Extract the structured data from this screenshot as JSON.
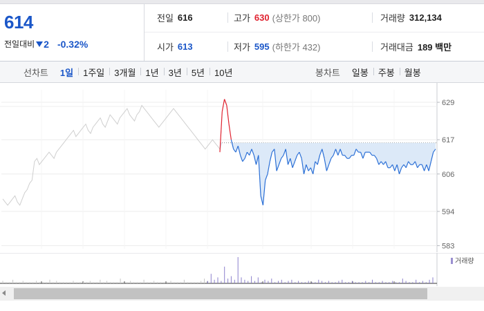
{
  "summary": {
    "price": "614",
    "change_label": "전일대비",
    "change_value": "2",
    "change_percent": "-0.32%",
    "prev_close_label": "전일",
    "prev_close": "616",
    "high_label": "고가",
    "high": "630",
    "upper_limit": "(상한가 800)",
    "volume_label": "거래량",
    "volume": "312,134",
    "open_label": "시가",
    "open": "613",
    "low_label": "저가",
    "low": "595",
    "lower_limit": "(하한가 432)",
    "amount_label": "거래대금",
    "amount": "189 백만"
  },
  "toolbar": {
    "line_chart_label": "선차트",
    "line_periods": [
      "1일",
      "1주일",
      "3개월",
      "1년",
      "3년",
      "5년",
      "10년"
    ],
    "active_period": "1일",
    "candle_chart_label": "봉차트",
    "candle_periods": [
      "일봉",
      "주봉",
      "월봉"
    ]
  },
  "chart_data": {
    "type": "line",
    "y_ticks": [
      "629",
      "617",
      "606",
      "594",
      "583"
    ],
    "ylim": [
      582,
      633
    ],
    "prev_close": 616,
    "colors": {
      "up": "#e0212e",
      "down": "#2a6fd6",
      "fill": "#dce9f8",
      "history": "#cfcfcf",
      "volume": "#9a8fd0"
    },
    "history_series": [
      598,
      597,
      596,
      597,
      598,
      599,
      597,
      596,
      598,
      600,
      601,
      603,
      604,
      610,
      611,
      609,
      610,
      611,
      612,
      613,
      612,
      611,
      613,
      614,
      615,
      616,
      617,
      618,
      619,
      620,
      618,
      619,
      620,
      621,
      622,
      620,
      619,
      621,
      622,
      623,
      624,
      622,
      621,
      623,
      625,
      624,
      623,
      622,
      624,
      625,
      626,
      627,
      625,
      624,
      623,
      625,
      626,
      628,
      627,
      626,
      625,
      624,
      623,
      622,
      621,
      622,
      623,
      624,
      625,
      626,
      627,
      626,
      625,
      624,
      623,
      622,
      621,
      620,
      619,
      618,
      617,
      616,
      615,
      614,
      615,
      616,
      617,
      616,
      615,
      614
    ],
    "intraday_series": [
      613,
      626,
      630,
      628,
      622,
      617,
      614,
      613,
      615,
      612,
      610,
      611,
      613,
      612,
      614,
      612,
      609,
      612,
      599,
      596,
      604,
      606,
      610,
      613,
      614,
      607,
      609,
      611,
      612,
      614,
      609,
      611,
      608,
      610,
      612,
      613,
      611,
      606,
      609,
      607,
      608,
      606,
      610,
      609,
      612,
      614,
      611,
      607,
      609,
      611,
      612,
      614,
      612,
      614,
      612,
      612,
      611,
      611,
      612,
      612,
      614,
      613,
      613,
      611,
      613,
      613,
      613,
      612,
      612,
      611,
      609,
      610,
      609,
      610,
      608,
      608,
      609,
      607,
      609,
      606,
      608,
      609,
      608,
      610,
      609,
      609,
      610,
      608,
      609,
      609,
      607,
      609,
      607,
      610,
      613,
      614
    ],
    "volume_label": "거래량",
    "volume_series": [
      2,
      1,
      1,
      3,
      1,
      1,
      2,
      1,
      1,
      1,
      2,
      1,
      1,
      1,
      3,
      1,
      2,
      1,
      1,
      1,
      1,
      2,
      1,
      1,
      1,
      1,
      2,
      1,
      1,
      3,
      1,
      2,
      1,
      1,
      1,
      4,
      1,
      1,
      2,
      1,
      1,
      1,
      3,
      1,
      1,
      2,
      1,
      1,
      1,
      1,
      2,
      1,
      1,
      1,
      3,
      1,
      1,
      1,
      1,
      2,
      4,
      2,
      8,
      3,
      5,
      2,
      14,
      4,
      6,
      3,
      22,
      5,
      3,
      2,
      6,
      2,
      5,
      1,
      3,
      2,
      4,
      1,
      2,
      3,
      1,
      2,
      3,
      1,
      2,
      1,
      1,
      2,
      1,
      1,
      3,
      2,
      1,
      2,
      1,
      1,
      2,
      3,
      1,
      1,
      2,
      1,
      1,
      1,
      2,
      1,
      3,
      1,
      1,
      2,
      1,
      1,
      2,
      1,
      1,
      4,
      2,
      1,
      1,
      3,
      1,
      2,
      1,
      3,
      5
    ]
  }
}
